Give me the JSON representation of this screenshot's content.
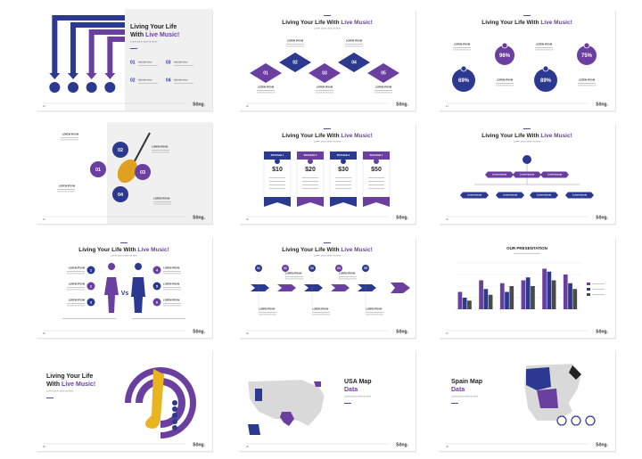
{
  "slides": [
    {
      "page": "19",
      "title": "Living Your Life",
      "title_line2": "With ",
      "highlight": "Live Music!",
      "subtitle": "Lorem ipsum dolor sit amet",
      "items": [
        {
          "num": "01",
          "label": "Add title here"
        },
        {
          "num": "02",
          "label": "Add title here"
        },
        {
          "num": "03",
          "label": "Add title here"
        },
        {
          "num": "04",
          "label": "Add title here"
        }
      ]
    },
    {
      "page": "20",
      "title": "Living Your Life With ",
      "highlight": "Live Music!",
      "subtitle": "Lorem ipsum dolor sit amet",
      "label": "LOREM IPSUM",
      "numbers": [
        "01",
        "02",
        "03",
        "04",
        "05"
      ]
    },
    {
      "page": "21",
      "title": "Living Your Life With ",
      "highlight": "Live Music!",
      "label": "LOREM IPSUM",
      "percents": [
        "69%",
        "96%",
        "89%",
        "75%"
      ]
    },
    {
      "page": "22",
      "label": "LOREM IPSUM",
      "numbers": [
        "01",
        "02",
        "03",
        "04"
      ]
    },
    {
      "page": "23",
      "title": "Living Your Life With ",
      "highlight": "Live Music!",
      "subtitle": "Lorem ipsum dolor sit amet",
      "packages": [
        {
          "name": "PACKAGE 1",
          "price": "$10"
        },
        {
          "name": "PACKAGE 2",
          "price": "$20"
        },
        {
          "name": "PACKAGE 3",
          "price": "$30"
        },
        {
          "name": "PACKAGE 4",
          "price": "$50"
        }
      ]
    },
    {
      "page": "24",
      "title": "Living Your Life With ",
      "highlight": "Live Music!",
      "subtitle": "Lorem ipsum dolor sit amet",
      "box": "Lorem Ipsum"
    },
    {
      "page": "25",
      "title": "Living Your Life With ",
      "highlight": "Live Music!",
      "subtitle": "Lorem ipsum dolor sit amet",
      "label": "LOREM IPSUM",
      "vs": "Vs",
      "numbers": [
        "1",
        "2",
        "3",
        "4",
        "5",
        "6"
      ]
    },
    {
      "page": "26",
      "title": "Living Your Life With ",
      "highlight": "Live Music!",
      "subtitle": "Lorem ipsum dolor sit amet",
      "label": "LOREM IPSUM",
      "numbers": [
        "01",
        "02",
        "03",
        "04",
        "05"
      ]
    },
    {
      "page": "27",
      "title": "OUR PRESENTATION",
      "chart": {
        "ylim": [
          0,
          8
        ],
        "series": [
          {
            "color": "#6a3fa0",
            "values": [
              3,
              5,
              4.5,
              5,
              7,
              6
            ]
          },
          {
            "color": "#2b3990",
            "values": [
              2,
              3.5,
              3,
              5.5,
              6.5,
              4.5
            ]
          },
          {
            "color": "#4a4a4a",
            "values": [
              1.5,
              2.5,
              4,
              4,
              5,
              3.5
            ]
          }
        ]
      }
    },
    {
      "page": "28",
      "title": "Living Your Life",
      "title_line2": "With ",
      "highlight": "Live Music!",
      "subtitle": "Lorem ipsum dolor sit amet"
    },
    {
      "page": "29",
      "title": "USA Map",
      "highlight": "Data",
      "subtitle": "Lorem ipsum dolor sit amet"
    },
    {
      "page": "30",
      "title": "Spain Map",
      "highlight": "Data",
      "subtitle": "Lorem ipsum dolor sit amet"
    }
  ],
  "logo": "Sŏng."
}
